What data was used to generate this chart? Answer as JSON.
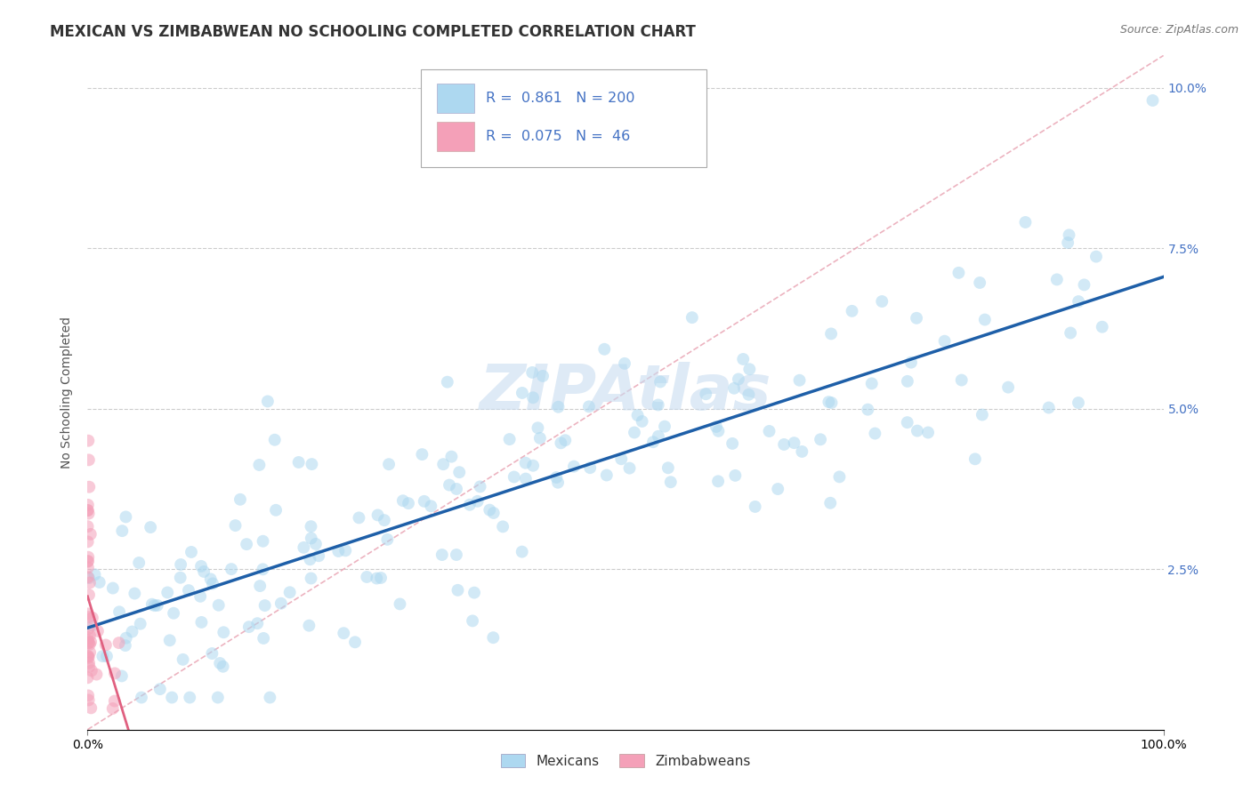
{
  "title": "MEXICAN VS ZIMBABWEAN NO SCHOOLING COMPLETED CORRELATION CHART",
  "source_text": "Source: ZipAtlas.com",
  "ylabel": "No Schooling Completed",
  "xlim": [
    0,
    1.0
  ],
  "ylim": [
    0,
    0.105
  ],
  "ytick_labels": [
    "2.5%",
    "5.0%",
    "7.5%",
    "10.0%"
  ],
  "ytick_values": [
    0.025,
    0.05,
    0.075,
    0.1
  ],
  "mexican_color": "#ADD8F0",
  "zimbabwean_color": "#F4A0B8",
  "mexican_line_color": "#1E5FA8",
  "zimbabwean_line_color": "#E06080",
  "diag_color": "#E8A0B0",
  "legend_R_mexican": "0.861",
  "legend_N_mexican": "200",
  "legend_R_zimbabwean": "0.075",
  "legend_N_zimbabwean": "46",
  "legend_color": "#4472C4",
  "watermark_text": "ZIPAtlas",
  "watermark_color": "#C8DCF0",
  "title_fontsize": 12,
  "axis_label_fontsize": 10,
  "tick_fontsize": 10,
  "background_color": "#FFFFFF",
  "grid_color": "#CCCCCC",
  "mexican_marker_size": 100,
  "zimbabwean_marker_size": 100,
  "mexican_alpha": 0.55,
  "zimbabwean_alpha": 0.55,
  "seed": 12345
}
